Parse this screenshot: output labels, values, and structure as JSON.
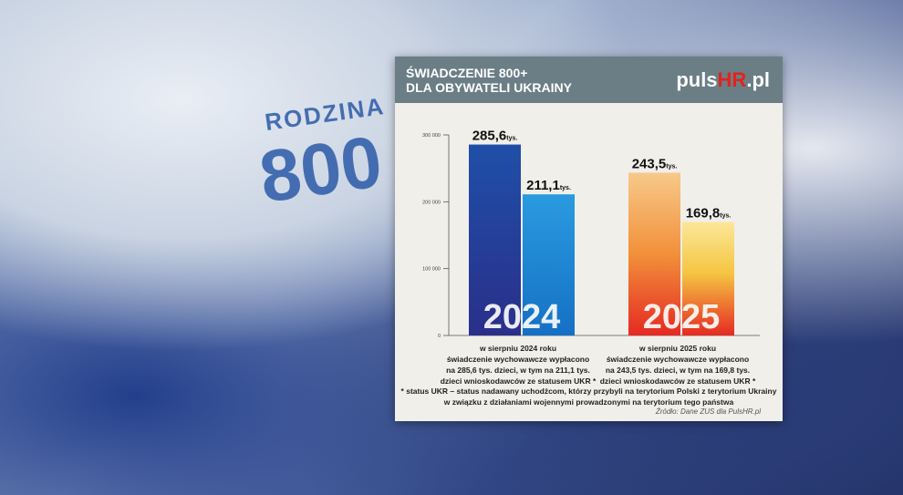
{
  "background": {
    "photo_text_top": "RODZINA",
    "photo_text_big": "800"
  },
  "header": {
    "title_line1": "ŚWIADCZENIE 800+",
    "title_line2": "DLA OBYWATELI UKRAINY",
    "logo_pre": "puls",
    "logo_hr": "HR",
    "logo_post": ".pl"
  },
  "colors": {
    "header": "#6b7e86",
    "bar_2024_all": "#1f4fa8",
    "bar_2024_ukr": "#2a9be0",
    "bar_2025_all": "#f2903a",
    "bar_2025_ukr": "#f5c542",
    "logo_accent": "#e2231a"
  },
  "chart_data": {
    "type": "bar",
    "ylim": [
      0,
      300000
    ],
    "yticks": [
      "0",
      "100 000",
      "200 000",
      "300 000"
    ],
    "ytick_values": [
      0,
      100000,
      200000,
      300000
    ],
    "groups": [
      {
        "label": "2024",
        "bars": [
          {
            "value": 285600,
            "label": "285,6",
            "unit": "tys."
          },
          {
            "value": 211100,
            "label": "211,1",
            "unit": "tys."
          }
        ],
        "note": [
          "w sierpniu 2024 roku",
          "świadczenie wychowawcze wypłacono",
          "na 285,6 tys. dzieci, w tym na 211,1 tys.",
          "dzieci wnioskodawców ze statusem UKR *"
        ]
      },
      {
        "label": "2025",
        "bars": [
          {
            "value": 243500,
            "label": "243,5",
            "unit": "tys."
          },
          {
            "value": 169800,
            "label": "169,8",
            "unit": "tys."
          }
        ],
        "note": [
          "w sierpniu 2025 roku",
          "świadczenie wychowawcze wypłacono",
          "na 243,5 tys. dzieci, w tym na 169,8 tys.",
          "dzieci wnioskodawców ze statusem UKR *"
        ]
      }
    ]
  },
  "footnote": [
    "* status UKR – status nadawany uchodźcom, którzy przybyli na terytorium Polski z terytorium Ukrainy",
    "w związku z działaniami wojennymi prowadzonymi na terytorium tego państwa"
  ],
  "source": "Źródło: Dane ZUS dla PulsHR.pl"
}
